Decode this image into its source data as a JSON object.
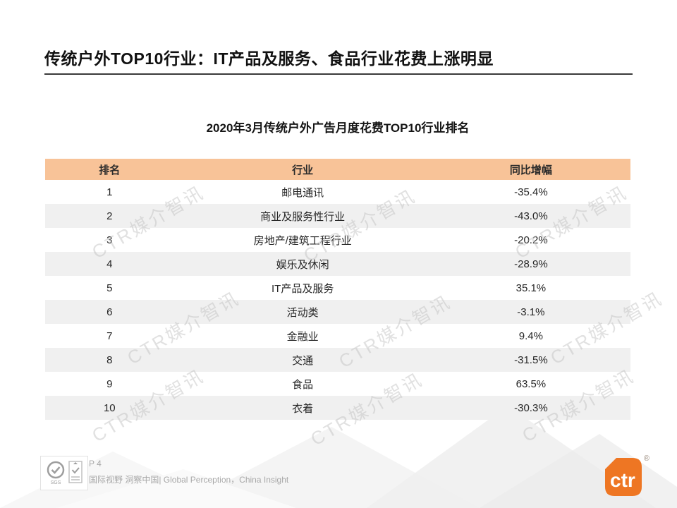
{
  "page": {
    "title": "传统户外TOP10行业：IT产品及服务、食品行业花费上涨明显",
    "page_number": "P 4",
    "footer_tagline": "国际视野 洞察中国| Global Perception，China Insight",
    "watermark_text": "CTR媒介智讯",
    "brand_logo_text": "ctr",
    "brand_registered_mark": "®",
    "cert_left_label": "SGS"
  },
  "colors": {
    "header_bg": "#F8C398",
    "row_alt_bg": "#F0F0F0",
    "brand_orange": "#EE7623",
    "title_rule": "#3a3a3a"
  },
  "table": {
    "caption": "2020年3月传统户外广告月度花费TOP10行业排名",
    "columns": [
      "排名",
      "行业",
      "同比增幅"
    ],
    "rows": [
      {
        "rank": "1",
        "industry": "邮电通讯",
        "growth": "-35.4%"
      },
      {
        "rank": "2",
        "industry": "商业及服务性行业",
        "growth": "-43.0%"
      },
      {
        "rank": "3",
        "industry": "房地产/建筑工程行业",
        "growth": "-20.2%"
      },
      {
        "rank": "4",
        "industry": "娱乐及休闲",
        "growth": "-28.9%"
      },
      {
        "rank": "5",
        "industry": "IT产品及服务",
        "growth": "35.1%"
      },
      {
        "rank": "6",
        "industry": "活动类",
        "growth": "-3.1%"
      },
      {
        "rank": "7",
        "industry": "金融业",
        "growth": "9.4%"
      },
      {
        "rank": "8",
        "industry": "交通",
        "growth": "-31.5%"
      },
      {
        "rank": "9",
        "industry": "食品",
        "growth": "63.5%"
      },
      {
        "rank": "10",
        "industry": "衣着",
        "growth": "-30.3%"
      }
    ]
  }
}
